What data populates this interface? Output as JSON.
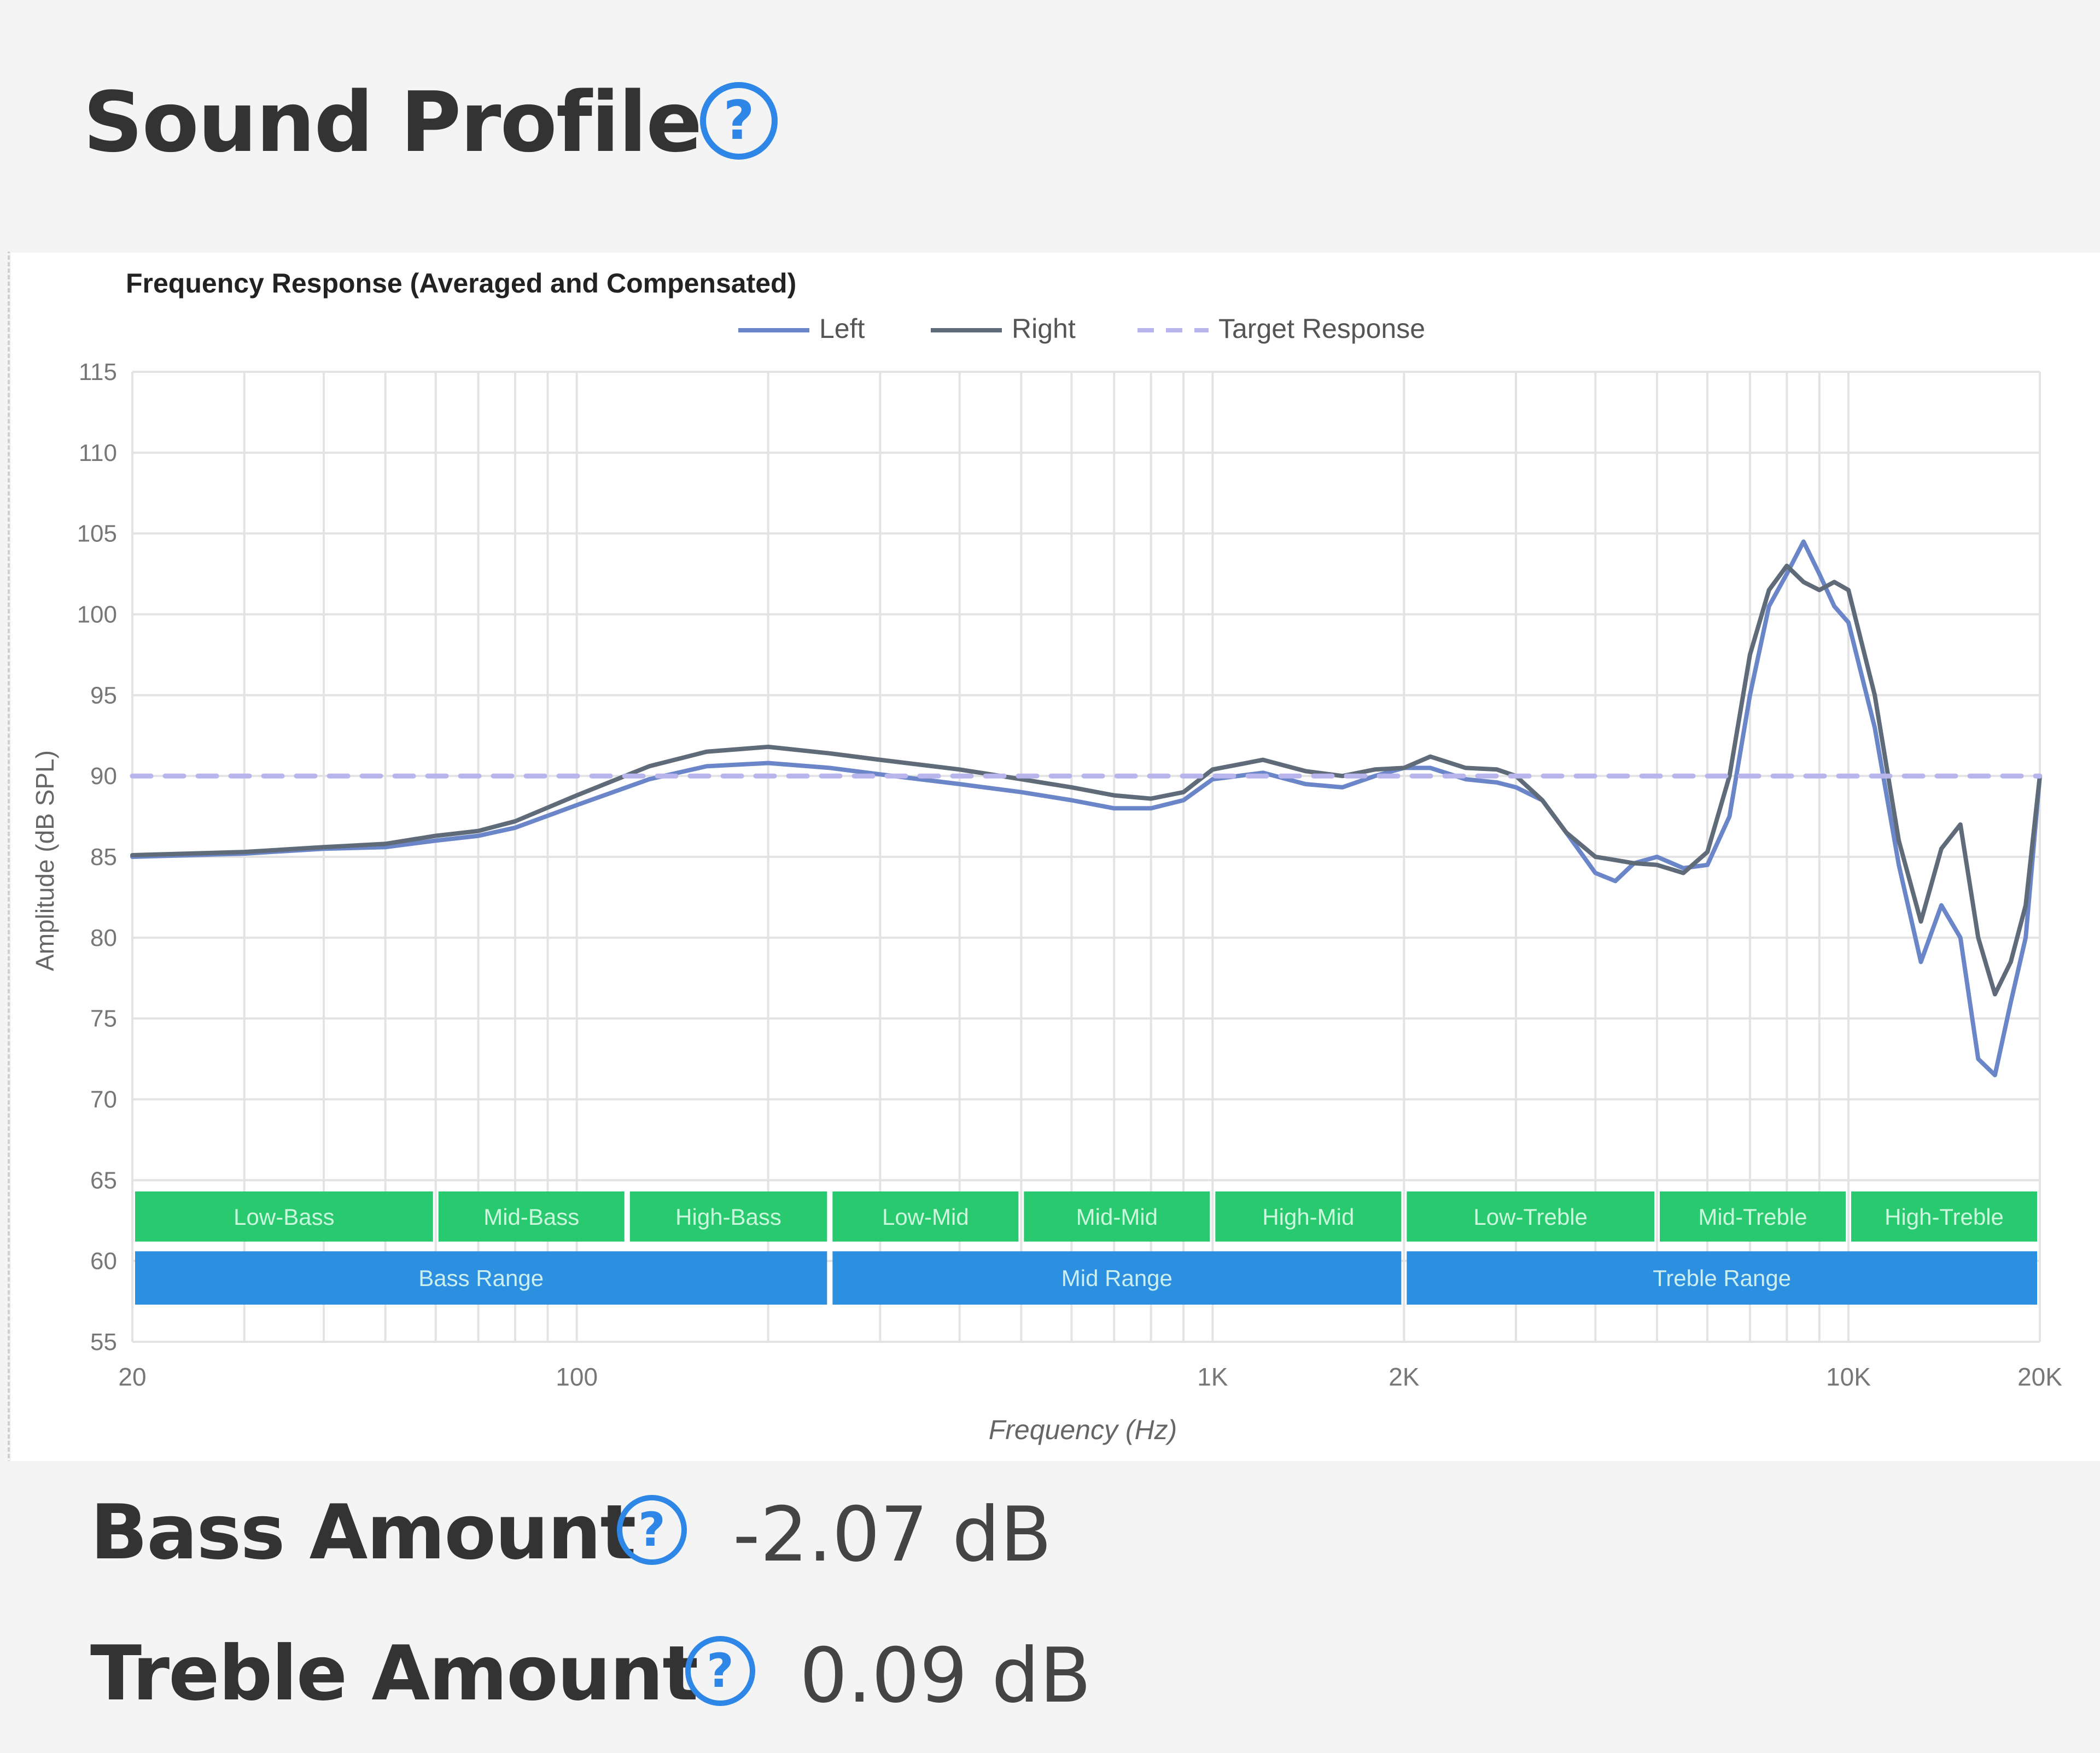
{
  "section": {
    "title": "Sound Profile",
    "help_icon": "question-circle-icon",
    "accent_color": "#2e86e6"
  },
  "stats": {
    "bass_label": "Bass Amount",
    "bass_value": "-2.07 dB",
    "treble_label": "Treble Amount",
    "treble_value": "0.09 dB"
  },
  "chart_data": {
    "type": "line",
    "title": "Frequency Response (Averaged and Compensated)",
    "xlabel": "Frequency (Hz)",
    "ylabel": "Amplitude (dB SPL)",
    "xscale": "log",
    "xlim": [
      20,
      20000
    ],
    "ylim": [
      55,
      115
    ],
    "grid": true,
    "legend_position": "top-center",
    "x_ticks": [
      {
        "value": 20,
        "label": "20"
      },
      {
        "value": 100,
        "label": "100"
      },
      {
        "value": 1000,
        "label": "1K"
      },
      {
        "value": 2000,
        "label": "2K"
      },
      {
        "value": 10000,
        "label": "10K"
      },
      {
        "value": 20000,
        "label": "20K"
      }
    ],
    "y_ticks": [
      55,
      60,
      65,
      70,
      75,
      80,
      85,
      90,
      95,
      100,
      105,
      110,
      115
    ],
    "series": [
      {
        "name": "Left",
        "color": "#6b86c8",
        "style": "solid",
        "x": [
          20,
          30,
          40,
          50,
          60,
          70,
          80,
          100,
          130,
          160,
          200,
          250,
          300,
          400,
          500,
          600,
          700,
          800,
          900,
          1000,
          1200,
          1400,
          1600,
          1800,
          2000,
          2200,
          2500,
          2800,
          3000,
          3300,
          3600,
          4000,
          4300,
          4600,
          5000,
          5500,
          6000,
          6500,
          7000,
          7500,
          8000,
          8500,
          9000,
          9500,
          10000,
          11000,
          12000,
          13000,
          14000,
          15000,
          16000,
          17000,
          18000,
          19000,
          20000
        ],
        "y": [
          85,
          85.2,
          85.5,
          85.6,
          86,
          86.3,
          86.8,
          88.2,
          89.8,
          90.6,
          90.8,
          90.5,
          90.1,
          89.5,
          89,
          88.5,
          88,
          88,
          88.5,
          89.8,
          90.2,
          89.5,
          89.3,
          90,
          90.5,
          90.5,
          89.8,
          89.6,
          89.3,
          88.5,
          86.5,
          84,
          83.5,
          84.6,
          85,
          84.3,
          84.5,
          87.5,
          95,
          100.5,
          102.5,
          104.5,
          102.5,
          100.5,
          99.5,
          93,
          84.5,
          78.5,
          82,
          80,
          72.5,
          71.5,
          76,
          80,
          90
        ]
      },
      {
        "name": "Right",
        "color": "#5f6b78",
        "style": "solid",
        "x": [
          20,
          30,
          40,
          50,
          60,
          70,
          80,
          100,
          130,
          160,
          200,
          250,
          300,
          400,
          500,
          600,
          700,
          800,
          900,
          1000,
          1200,
          1400,
          1600,
          1800,
          2000,
          2200,
          2500,
          2800,
          3000,
          3300,
          3600,
          4000,
          4300,
          4600,
          5000,
          5500,
          6000,
          6500,
          7000,
          7500,
          8000,
          8500,
          9000,
          9500,
          10000,
          11000,
          12000,
          13000,
          14000,
          15000,
          16000,
          17000,
          18000,
          19000,
          20000
        ],
        "y": [
          85.1,
          85.3,
          85.6,
          85.8,
          86.3,
          86.6,
          87.2,
          88.8,
          90.6,
          91.5,
          91.8,
          91.4,
          91,
          90.4,
          89.8,
          89.3,
          88.8,
          88.6,
          89,
          90.4,
          91,
          90.3,
          90,
          90.4,
          90.5,
          91.2,
          90.5,
          90.4,
          90,
          88.5,
          86.5,
          85,
          84.8,
          84.6,
          84.5,
          84,
          85.3,
          90,
          97.5,
          101.5,
          103,
          102,
          101.5,
          102,
          101.5,
          95,
          86,
          81,
          85.5,
          87,
          80,
          76.5,
          78.5,
          82,
          90
        ]
      },
      {
        "name": "Target Response",
        "color": "#b8b4ec",
        "style": "dashed",
        "x": [
          20,
          20000
        ],
        "y": [
          90,
          90
        ]
      }
    ],
    "bands": [
      {
        "row": "sub",
        "label": "Low-Bass",
        "from": 20,
        "to": 60,
        "color": "#29c96f"
      },
      {
        "row": "sub",
        "label": "Mid-Bass",
        "from": 60,
        "to": 120,
        "color": "#29c96f"
      },
      {
        "row": "sub",
        "label": "High-Bass",
        "from": 120,
        "to": 250,
        "color": "#29c96f"
      },
      {
        "row": "sub",
        "label": "Low-Mid",
        "from": 250,
        "to": 500,
        "color": "#29c96f"
      },
      {
        "row": "sub",
        "label": "Mid-Mid",
        "from": 500,
        "to": 1000,
        "color": "#29c96f"
      },
      {
        "row": "sub",
        "label": "High-Mid",
        "from": 1000,
        "to": 2000,
        "color": "#29c96f"
      },
      {
        "row": "sub",
        "label": "Low-Treble",
        "from": 2000,
        "to": 5000,
        "color": "#29c96f"
      },
      {
        "row": "sub",
        "label": "Mid-Treble",
        "from": 5000,
        "to": 10000,
        "color": "#29c96f"
      },
      {
        "row": "sub",
        "label": "High-Treble",
        "from": 10000,
        "to": 20000,
        "color": "#29c96f"
      },
      {
        "row": "range",
        "label": "Bass Range",
        "from": 20,
        "to": 250,
        "color": "#2d8fe0"
      },
      {
        "row": "range",
        "label": "Mid Range",
        "from": 250,
        "to": 2000,
        "color": "#2d8fe0"
      },
      {
        "row": "range",
        "label": "Treble Range",
        "from": 2000,
        "to": 20000,
        "color": "#2d8fe0"
      }
    ]
  }
}
